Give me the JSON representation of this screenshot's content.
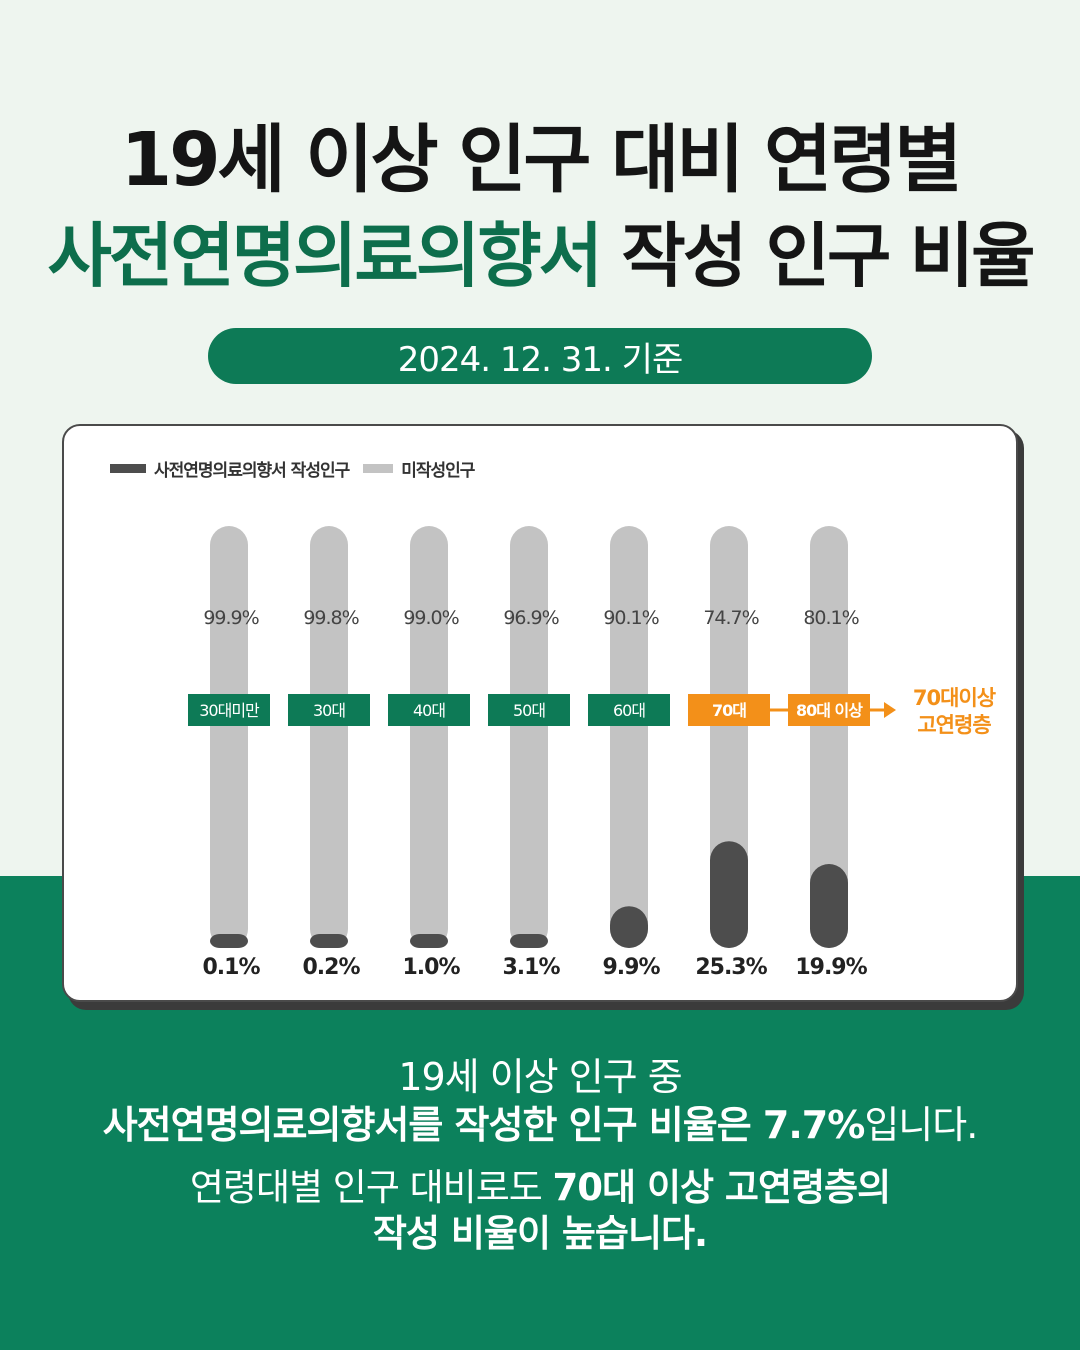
{
  "title": {
    "line1": "19세 이상 인구 대비 연령별",
    "line2_highlight": "사전연명의료의향서",
    "line2_rest": " 작성 인구 비율"
  },
  "date_label": "2024. 12. 31. 기준",
  "colors": {
    "green": "#0d7a56",
    "orange": "#f39019",
    "written": "#4d4d4d",
    "unwritten": "#c3c3c3"
  },
  "chart_data": {
    "type": "bar",
    "stacked": true,
    "categories": [
      "30대미만",
      "30대",
      "40대",
      "50대",
      "60대",
      "70대",
      "80대 이상"
    ],
    "series": [
      {
        "name": "사전연명의료의향서 작성인구",
        "values": [
          0.1,
          0.2,
          1.0,
          3.1,
          9.9,
          25.3,
          19.9
        ]
      },
      {
        "name": "미작성인구",
        "values": [
          99.9,
          99.8,
          99.0,
          96.9,
          90.1,
          74.7,
          80.1
        ]
      }
    ],
    "written_labels": [
      "0.1%",
      "0.2%",
      "1.0%",
      "3.1%",
      "9.9%",
      "25.3%",
      "19.9%"
    ],
    "unwritten_labels": [
      "99.9%",
      "99.8%",
      "99.0%",
      "96.9%",
      "90.1%",
      "74.7%",
      "80.1%"
    ],
    "highlighted_categories": [
      "70대",
      "80대 이상"
    ],
    "annotation": [
      "70대이상",
      "고연령층"
    ],
    "ylim": [
      0,
      100
    ],
    "legend_position": "top-left",
    "grid": false
  },
  "footer": {
    "line1": "19세 이상 인구 중",
    "line2_bold": "사전연명의료의향서를 작성한 인구 비율은 7.7%",
    "line2_normal": "입니다.",
    "line3_normal": "연령대별 인구 대비로도 ",
    "line3_bold": "70대 이상 고연령층의",
    "line4": "작성 비율이 높습니다."
  }
}
